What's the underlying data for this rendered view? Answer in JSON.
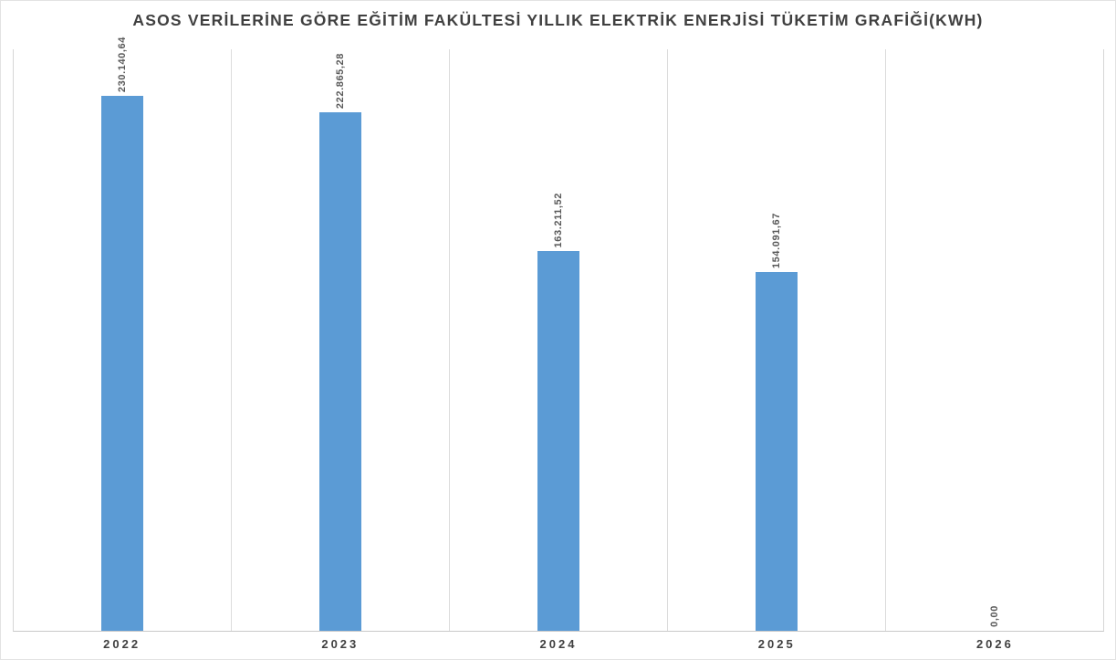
{
  "chart_data": {
    "type": "bar",
    "title": "ASOS VERİLERİNE GÖRE EĞİTİM FAKÜLTESİ YILLIK ELEKTRİK ENERJİSİ TÜKETİM GRAFİĞİ(KWH)",
    "categories": [
      "2022",
      "2023",
      "2024",
      "2025",
      "2026"
    ],
    "values": [
      230140.64,
      222865.28,
      163211.52,
      154091.67,
      0
    ],
    "value_labels": [
      "230.140,64",
      "222.865,28",
      "163.211,52",
      "154.091,67",
      "0,00"
    ],
    "xlabel": "",
    "ylabel": "",
    "ylim": [
      0,
      250000
    ],
    "bar_color": "#5B9BD5",
    "data_label_rotation_deg": 90,
    "data_label_position": "outside-end",
    "legend": "none",
    "grid": "vertical category separators only, no horizontal gridlines, y-axis hidden"
  }
}
